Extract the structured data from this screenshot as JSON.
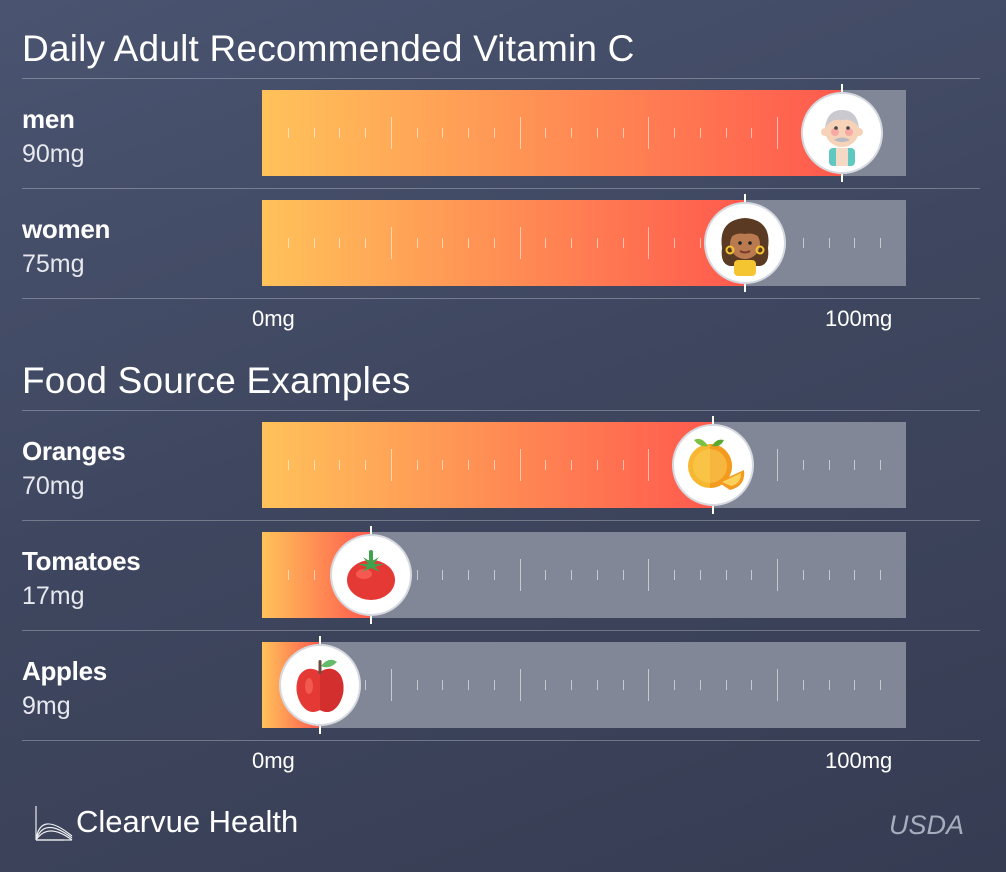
{
  "chart_data": [
    {
      "type": "bar",
      "title": "Daily Adult Recommended Vitamin C",
      "categories": [
        "men",
        "women"
      ],
      "values": [
        90,
        75
      ],
      "value_labels": [
        "90mg",
        "75mg"
      ],
      "icons": [
        "elderly-man-icon",
        "woman-icon"
      ],
      "xlim": [
        0,
        100
      ],
      "axis": {
        "min_label": "0mg",
        "max_label": "100mg"
      }
    },
    {
      "type": "bar",
      "title": "Food Source Examples",
      "categories": [
        "Oranges",
        "Tomatoes",
        "Apples"
      ],
      "values": [
        70,
        17,
        9
      ],
      "value_labels": [
        "70mg",
        "17mg",
        "9mg"
      ],
      "icons": [
        "orange-icon",
        "tomato-icon",
        "apple-icon"
      ],
      "xlim": [
        0,
        100
      ],
      "axis": {
        "min_label": "0mg",
        "max_label": "100mg"
      }
    }
  ],
  "colors": {
    "fill_start": "#ffc25a",
    "fill_end": "#ff5a4e",
    "track": "#818796",
    "background": "#424a64"
  },
  "footer": {
    "brand": "Clearvue Health",
    "source": "USDA"
  }
}
